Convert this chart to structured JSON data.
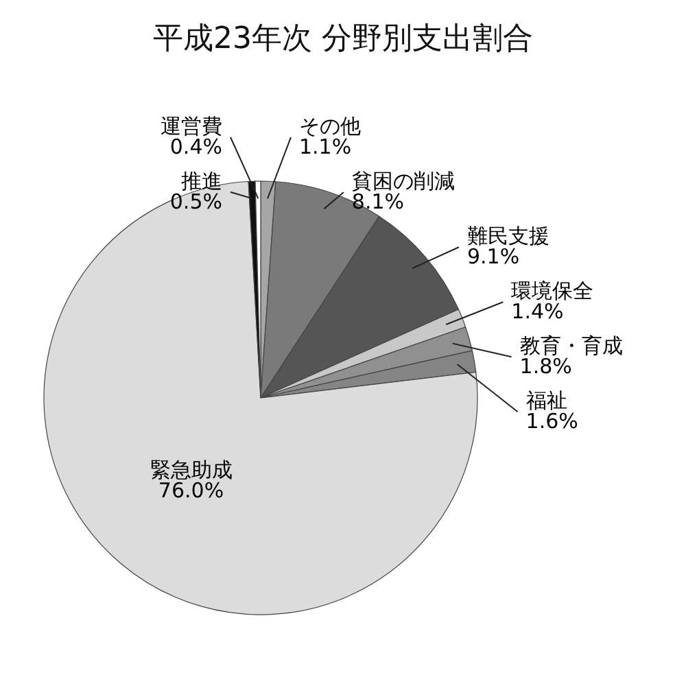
{
  "chart_data": {
    "type": "pie",
    "title": "平成23年次 分野別支出割合",
    "categories": [
      "その他",
      "貧困の削減",
      "難民支援",
      "環境保全",
      "教育・育成",
      "福祉",
      "緊急助成",
      "推進",
      "運営費"
    ],
    "values": [
      1.1,
      8.1,
      9.1,
      1.4,
      1.8,
      1.6,
      76.0,
      0.5,
      0.4
    ],
    "value_labels": [
      "1.1%",
      "8.1%",
      "9.1%",
      "1.4%",
      "1.8%",
      "1.6%",
      "76.0%",
      "0.5%",
      "0.4%"
    ],
    "colors": [
      "#a6a6a6",
      "#7a7a7a",
      "#555555",
      "#c8c8c8",
      "#909090",
      "#858585",
      "#dcdcdc",
      "#111111",
      "#ffffff"
    ]
  }
}
